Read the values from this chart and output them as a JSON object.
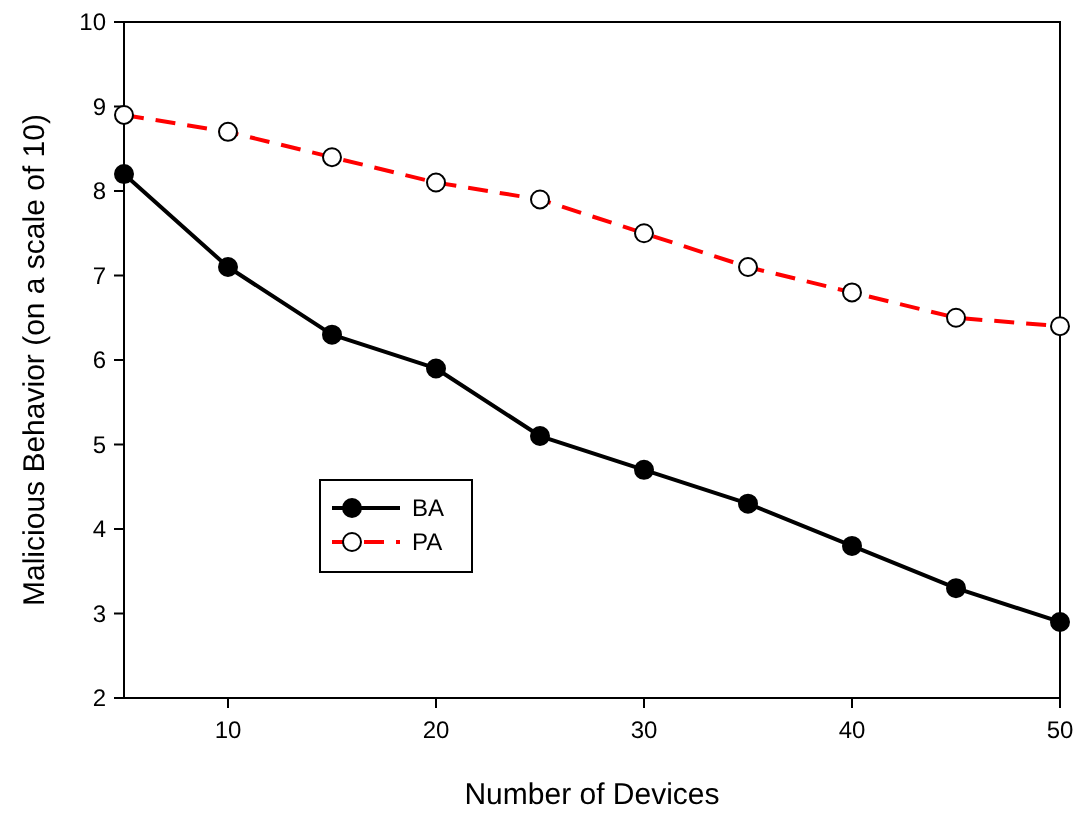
{
  "chart_data": {
    "type": "line",
    "xlabel": "Number of Devices",
    "ylabel": "Malicious Behavior (on a scale of 10)",
    "x": [
      5,
      10,
      15,
      20,
      25,
      30,
      35,
      40,
      45,
      50
    ],
    "series": [
      {
        "name": "BA",
        "color": "#000000",
        "marker": "circle",
        "line_style": "solid",
        "values": [
          8.2,
          7.1,
          6.3,
          5.9,
          5.1,
          4.7,
          4.3,
          3.8,
          3.3,
          2.9
        ]
      },
      {
        "name": "PA",
        "color": "#ff0000",
        "marker": "circle",
        "line_style": "dashed",
        "values": [
          8.9,
          8.7,
          8.4,
          8.1,
          7.9,
          7.5,
          7.1,
          6.8,
          6.5,
          6.4
        ]
      }
    ],
    "xlim": [
      5,
      50
    ],
    "xticks": [
      10,
      20,
      30,
      40,
      50
    ],
    "ylim": [
      2,
      10
    ],
    "yticks": [
      2,
      3,
      4,
      5,
      6,
      7,
      8,
      9,
      10
    ],
    "grid": false,
    "legend": "left"
  }
}
